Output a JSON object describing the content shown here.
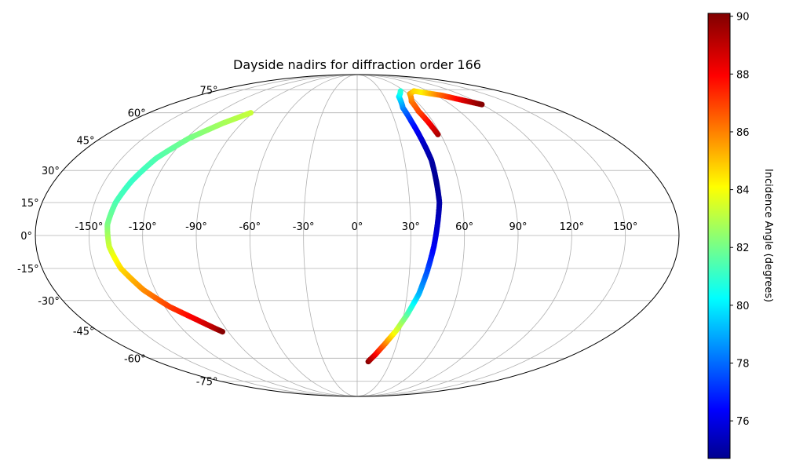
{
  "chart_data": {
    "type": "scatter",
    "projection": "mollweide",
    "title": "Dayside nadirs for diffraction order 166",
    "grid": true,
    "lon_ticks": [
      "-150°",
      "-120°",
      "-90°",
      "-60°",
      "-30°",
      "0°",
      "30°",
      "60°",
      "90°",
      "120°",
      "150°"
    ],
    "lat_ticks": [
      "-75°",
      "-60°",
      "-45°",
      "-30°",
      "-15°",
      "0°",
      "15°",
      "30°",
      "45°",
      "60°",
      "75°"
    ],
    "colorbar": {
      "label": "Incidence Angle (degrees)",
      "colormap": "jet",
      "range": [
        74.7,
        90.1
      ],
      "ticks": [
        "76",
        "78",
        "80",
        "82",
        "84",
        "86",
        "88",
        "90"
      ],
      "tick_values": [
        76,
        78,
        80,
        82,
        84,
        86,
        88,
        90
      ]
    },
    "series": [
      {
        "points": [
          {
            "lon": -92,
            "lat": 60,
            "inc": 83.5
          },
          {
            "lon": -105,
            "lat": 54,
            "inc": 83.0
          },
          {
            "lon": -118,
            "lat": 46,
            "inc": 82.3
          },
          {
            "lon": -128,
            "lat": 36,
            "inc": 81.7
          },
          {
            "lon": -134,
            "lat": 25,
            "inc": 81.3
          },
          {
            "lon": -138,
            "lat": 15,
            "inc": 81.6
          },
          {
            "lon": -140,
            "lat": 5,
            "inc": 82.3
          },
          {
            "lon": -139,
            "lat": -5,
            "inc": 83.5
          },
          {
            "lon": -135,
            "lat": -15,
            "inc": 84.8
          },
          {
            "lon": -127,
            "lat": -25,
            "inc": 86.0
          },
          {
            "lon": -117,
            "lat": -33,
            "inc": 87.2
          },
          {
            "lon": -106,
            "lat": -39,
            "inc": 88.3
          },
          {
            "lon": -97,
            "lat": -44,
            "inc": 89.3
          },
          {
            "lon": -94,
            "lat": -45.5,
            "inc": 90.0
          }
        ]
      },
      {
        "points": [
          {
            "lon": 10,
            "lat": -62,
            "inc": 90.0
          },
          {
            "lon": 15,
            "lat": -58,
            "inc": 88.5
          },
          {
            "lon": 21,
            "lat": -52,
            "inc": 86.5
          },
          {
            "lon": 27,
            "lat": -45,
            "inc": 84.0
          },
          {
            "lon": 32,
            "lat": -37,
            "inc": 82.0
          },
          {
            "lon": 37,
            "lat": -27,
            "inc": 79.5
          },
          {
            "lon": 40,
            "lat": -17,
            "inc": 78.0
          },
          {
            "lon": 43,
            "lat": -5,
            "inc": 76.5
          },
          {
            "lon": 45,
            "lat": 5,
            "inc": 75.8
          },
          {
            "lon": 47,
            "lat": 15,
            "inc": 75.3
          },
          {
            "lon": 47,
            "lat": 25,
            "inc": 75.0
          },
          {
            "lon": 47,
            "lat": 35,
            "inc": 75.2
          },
          {
            "lon": 45,
            "lat": 45,
            "inc": 75.8
          },
          {
            "lon": 43,
            "lat": 55,
            "inc": 77.0
          },
          {
            "lon": 42,
            "lat": 63,
            "inc": 78.5
          },
          {
            "lon": 46,
            "lat": 70,
            "inc": 80.0
          },
          {
            "lon": 55,
            "lat": 74,
            "inc": 81.0
          }
        ]
      },
      {
        "points": [
          {
            "lon": 58,
            "lat": 48,
            "inc": 89.5
          },
          {
            "lon": 56,
            "lat": 55,
            "inc": 88.2
          },
          {
            "lon": 54,
            "lat": 61,
            "inc": 87.2
          },
          {
            "lon": 55,
            "lat": 67,
            "inc": 86.5
          },
          {
            "lon": 62,
            "lat": 72,
            "inc": 85.8
          },
          {
            "lon": 72,
            "lat": 74,
            "inc": 85.0
          },
          {
            "lon": 80,
            "lat": 73,
            "inc": 84.5
          },
          {
            "lon": 88,
            "lat": 72,
            "inc": 85.5
          },
          {
            "lon": 96,
            "lat": 71,
            "inc": 86.6
          },
          {
            "lon": 104,
            "lat": 69,
            "inc": 87.8
          },
          {
            "lon": 112,
            "lat": 67,
            "inc": 89.0
          },
          {
            "lon": 120,
            "lat": 65,
            "inc": 90.0
          }
        ]
      }
    ]
  }
}
